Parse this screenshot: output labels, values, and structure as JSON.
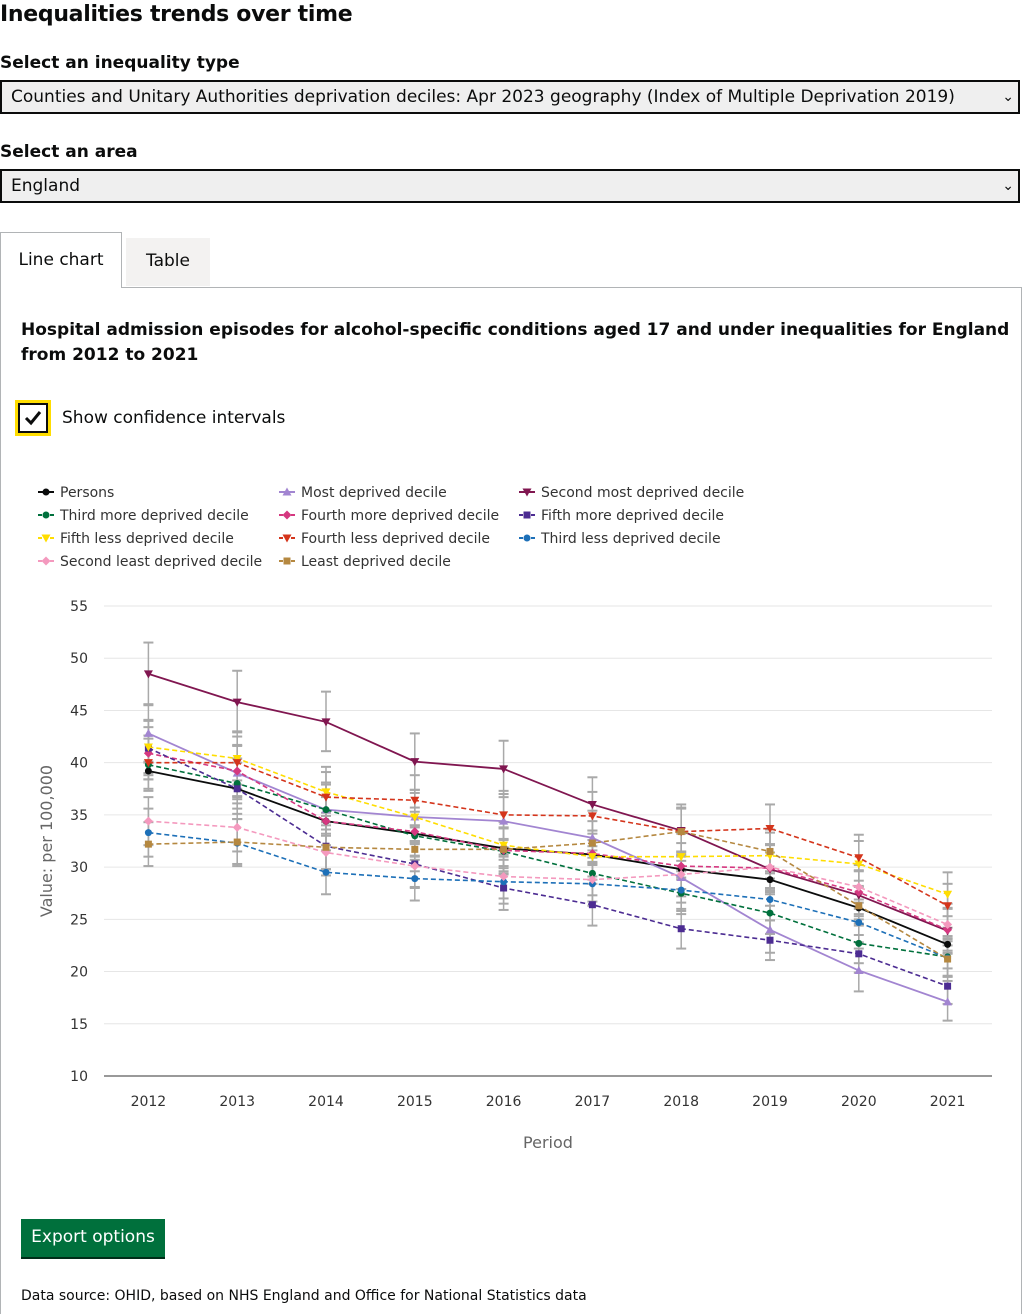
{
  "page": {
    "title": "Inequalities trends over time"
  },
  "inequality_select": {
    "label": "Select an inequality type",
    "value": "Counties and Unitary Authorities deprivation deciles: Apr 2023 geography (Index of Multiple Deprivation 2019)"
  },
  "area_select": {
    "label": "Select an area",
    "value": "England"
  },
  "tabs": [
    {
      "label": "Line chart"
    },
    {
      "label": "Table"
    }
  ],
  "chart_title": "Hospital admission episodes for alcohol-specific conditions aged 17 and under inequalities for England from 2012 to 2021",
  "confidence": {
    "label": "Show confidence intervals",
    "checked": true
  },
  "export_label": "Export options",
  "data_source": "Data source: OHID, based on NHS England and Office for National Statistics data",
  "chart_data": {
    "type": "line",
    "title": "Hospital admission episodes for alcohol-specific conditions aged 17 and under inequalities for England from 2012 to 2021",
    "xlabel": "Period",
    "ylabel": "Value: per 100,000",
    "ylim": [
      10,
      55
    ],
    "yticks": [
      10,
      15,
      20,
      25,
      30,
      35,
      40,
      45,
      50,
      55
    ],
    "x": [
      "2012",
      "2013",
      "2014",
      "2015",
      "2016",
      "2017",
      "2018",
      "2019",
      "2020",
      "2021"
    ],
    "grid": true,
    "legend_position": "top",
    "series": [
      {
        "name": "Persons",
        "color": "#0b0c0c",
        "marker": "circle",
        "dashed": false,
        "values": [
          39.2,
          37.5,
          34.4,
          33.2,
          31.8,
          31.2,
          29.8,
          28.8,
          26.1,
          22.6
        ],
        "ci": [
          [
            38.4,
            40.0
          ],
          [
            36.7,
            38.3
          ],
          [
            33.6,
            35.2
          ],
          [
            32.4,
            34.0
          ],
          [
            31.0,
            32.6
          ],
          [
            30.4,
            32.0
          ],
          [
            29.0,
            30.6
          ],
          [
            28.0,
            29.6
          ],
          [
            25.3,
            26.9
          ],
          [
            21.8,
            23.4
          ]
        ]
      },
      {
        "name": "Most deprived decile",
        "color": "#a285d1",
        "marker": "triangle-up",
        "dashed": false,
        "values": [
          42.8,
          39.0,
          35.5,
          34.8,
          34.4,
          32.8,
          29.0,
          24.0,
          20.1,
          17.1
        ],
        "ci": [
          [
            40.1,
            45.5
          ],
          [
            36.5,
            41.6
          ],
          [
            33.0,
            38.1
          ],
          [
            32.3,
            37.4
          ],
          [
            31.9,
            37.0
          ],
          [
            30.3,
            35.4
          ],
          [
            26.6,
            31.5
          ],
          [
            21.8,
            26.3
          ],
          [
            18.1,
            22.2
          ],
          [
            15.3,
            19.1
          ]
        ]
      },
      {
        "name": "Second most deprived decile",
        "color": "#801650",
        "marker": "triangle-down",
        "dashed": false,
        "values": [
          48.5,
          45.8,
          43.9,
          40.1,
          39.4,
          36.0,
          33.5,
          29.8,
          27.3,
          23.9
        ],
        "ci": [
          [
            45.6,
            51.5
          ],
          [
            43.0,
            48.8
          ],
          [
            41.1,
            46.8
          ],
          [
            37.4,
            42.8
          ],
          [
            36.7,
            42.1
          ],
          [
            33.5,
            38.6
          ],
          [
            31.0,
            36.0
          ],
          [
            27.4,
            32.2
          ],
          [
            25.0,
            29.6
          ],
          [
            21.7,
            26.1
          ]
        ]
      },
      {
        "name": "Third more deprived decile",
        "color": "#00703c",
        "marker": "circle",
        "dashed": true,
        "values": [
          39.8,
          38.0,
          35.5,
          33.0,
          31.5,
          29.4,
          27.5,
          25.6,
          22.7,
          21.4
        ],
        "ci": [
          [
            37.3,
            42.3
          ],
          [
            35.6,
            40.4
          ],
          [
            33.2,
            37.9
          ],
          [
            30.7,
            35.3
          ],
          [
            29.3,
            33.7
          ],
          [
            27.3,
            31.6
          ],
          [
            25.5,
            29.6
          ],
          [
            23.6,
            27.6
          ],
          [
            20.8,
            24.6
          ],
          [
            19.6,
            23.2
          ]
        ]
      },
      {
        "name": "Fourth more deprived decile",
        "color": "#d53880",
        "marker": "diamond",
        "dashed": true,
        "values": [
          40.9,
          39.2,
          34.4,
          33.4,
          31.6,
          31.3,
          30.1,
          29.9,
          27.6,
          24.0
        ],
        "ci": [
          [
            38.4,
            43.4
          ],
          [
            36.8,
            41.7
          ],
          [
            32.1,
            36.7
          ],
          [
            31.1,
            35.7
          ],
          [
            29.4,
            33.8
          ],
          [
            29.1,
            33.5
          ],
          [
            27.9,
            32.3
          ],
          [
            27.7,
            32.1
          ],
          [
            25.5,
            29.7
          ],
          [
            22.0,
            26.0
          ]
        ]
      },
      {
        "name": "Fifth more deprived decile",
        "color": "#4c2c92",
        "marker": "square",
        "dashed": true,
        "values": [
          41.4,
          37.5,
          32.0,
          30.3,
          28.0,
          26.4,
          24.1,
          23.0,
          21.7,
          18.6
        ],
        "ci": [
          [
            38.8,
            44.0
          ],
          [
            35.1,
            40.0
          ],
          [
            29.8,
            34.3
          ],
          [
            28.1,
            32.5
          ],
          [
            25.9,
            30.1
          ],
          [
            24.4,
            28.4
          ],
          [
            22.2,
            26.0
          ],
          [
            21.1,
            24.9
          ],
          [
            19.9,
            23.5
          ],
          [
            16.9,
            20.3
          ]
        ]
      },
      {
        "name": "Fifth less deprived decile",
        "color": "#ffdd00",
        "marker": "triangle-down",
        "dashed": true,
        "values": [
          41.5,
          40.4,
          37.2,
          34.8,
          32.1,
          31.0,
          31.0,
          31.1,
          30.3,
          27.4
        ],
        "ci": [
          [
            39.0,
            44.1
          ],
          [
            37.9,
            42.9
          ],
          [
            34.9,
            39.6
          ],
          [
            32.5,
            37.1
          ],
          [
            29.9,
            34.3
          ],
          [
            28.8,
            33.2
          ],
          [
            28.8,
            33.2
          ],
          [
            28.9,
            33.3
          ],
          [
            28.1,
            32.5
          ],
          [
            25.3,
            29.5
          ]
        ]
      },
      {
        "name": "Fourth less deprived decile",
        "color": "#d4351c",
        "marker": "triangle-down",
        "dashed": true,
        "values": [
          40.0,
          40.0,
          36.7,
          36.4,
          35.0,
          34.9,
          33.4,
          33.7,
          30.9,
          26.3
        ],
        "ci": [
          [
            37.5,
            42.6
          ],
          [
            37.5,
            42.5
          ],
          [
            34.3,
            39.1
          ],
          [
            34.0,
            38.8
          ],
          [
            32.7,
            37.3
          ],
          [
            32.6,
            37.2
          ],
          [
            31.1,
            35.7
          ],
          [
            31.4,
            36.0
          ],
          [
            28.7,
            33.1
          ],
          [
            24.2,
            28.4
          ]
        ]
      },
      {
        "name": "Third less deprived decile",
        "color": "#1d70b8",
        "marker": "circle",
        "dashed": true,
        "values": [
          33.3,
          32.3,
          29.5,
          28.9,
          28.6,
          28.4,
          27.8,
          26.9,
          24.7,
          21.3
        ],
        "ci": [
          [
            31.0,
            35.6
          ],
          [
            30.1,
            34.6
          ],
          [
            27.4,
            31.6
          ],
          [
            26.8,
            31.0
          ],
          [
            26.5,
            30.7
          ],
          [
            26.3,
            30.5
          ],
          [
            25.8,
            29.8
          ],
          [
            24.9,
            28.9
          ],
          [
            22.8,
            26.6
          ],
          [
            19.5,
            23.1
          ]
        ]
      },
      {
        "name": "Second least deprived decile",
        "color": "#f499be",
        "marker": "diamond",
        "dashed": true,
        "values": [
          34.4,
          33.8,
          31.4,
          30.1,
          29.1,
          28.8,
          29.3,
          30.0,
          28.1,
          24.5
        ],
        "ci": [
          [
            32.1,
            36.7
          ],
          [
            31.5,
            36.1
          ],
          [
            29.2,
            33.6
          ],
          [
            28.0,
            32.2
          ],
          [
            27.0,
            31.2
          ],
          [
            26.7,
            30.9
          ],
          [
            27.2,
            31.4
          ],
          [
            27.8,
            32.2
          ],
          [
            26.0,
            30.2
          ],
          [
            22.5,
            26.5
          ]
        ]
      },
      {
        "name": "Least deprived decile",
        "color": "#b58840",
        "marker": "square",
        "dashed": true,
        "values": [
          32.2,
          32.4,
          31.9,
          31.7,
          31.7,
          32.3,
          33.4,
          31.5,
          26.3,
          21.2
        ],
        "ci": [
          [
            30.1,
            34.3
          ],
          [
            30.3,
            34.6
          ],
          [
            29.8,
            34.0
          ],
          [
            29.6,
            33.8
          ],
          [
            29.6,
            33.8
          ],
          [
            30.2,
            34.4
          ],
          [
            31.2,
            35.6
          ],
          [
            29.4,
            33.6
          ],
          [
            24.4,
            28.2
          ],
          [
            19.5,
            22.9
          ]
        ]
      }
    ]
  }
}
